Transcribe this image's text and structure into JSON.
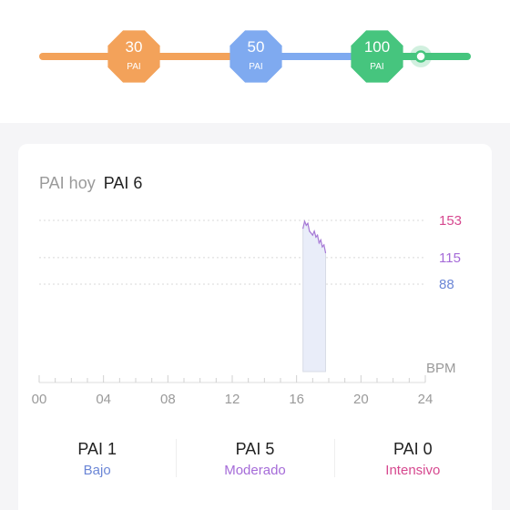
{
  "progress": {
    "current_level": 0.925,
    "milestones": [
      {
        "value": "30",
        "unit": "PAI",
        "color": "#f3a25a"
      },
      {
        "value": "50",
        "unit": "PAI",
        "color": "#7faaf0"
      },
      {
        "value": "100",
        "unit": "PAI",
        "color": "#46c57e"
      }
    ]
  },
  "card": {
    "title_label": "PAI hoy",
    "title_value": "PAI 6"
  },
  "chart_data": {
    "type": "area",
    "title": "",
    "xlabel": "",
    "ylabel": "BPM",
    "x_ticks": [
      "00",
      "04",
      "08",
      "12",
      "16",
      "20",
      "24"
    ],
    "xlim": [
      0,
      24
    ],
    "ylim": [
      40,
      165
    ],
    "thresholds": [
      {
        "value": 153,
        "label": "153",
        "color": "#d6488f"
      },
      {
        "value": 115,
        "label": "115",
        "color": "#a56bd8"
      },
      {
        "value": 88,
        "label": "88",
        "color": "#6b86d6"
      }
    ],
    "series": [
      {
        "x": [
          16.4,
          16.5,
          16.6,
          16.7,
          16.8,
          16.9,
          17.0,
          17.1,
          17.2,
          17.3,
          17.4,
          17.5,
          17.6,
          17.7,
          17.8
        ],
        "y": [
          145,
          152,
          148,
          150,
          142,
          140,
          138,
          142,
          136,
          138,
          130,
          133,
          126,
          128,
          120
        ]
      }
    ],
    "grid": false,
    "line_color": "#a77ad6",
    "fill_color": "#e9edf9"
  },
  "stats": [
    {
      "value": "PAI 1",
      "label": "Bajo",
      "color": "#6b86d6"
    },
    {
      "value": "PAI 5",
      "label": "Moderado",
      "color": "#a56bd8"
    },
    {
      "value": "PAI 0",
      "label": "Intensivo",
      "color": "#d6488f"
    }
  ]
}
